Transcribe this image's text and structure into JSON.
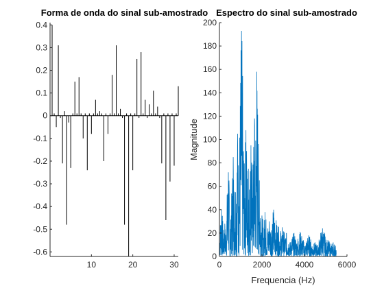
{
  "colors": {
    "stem": "#000000",
    "spectrum": "#0072BD",
    "axis": "#262626"
  },
  "chart_data": [
    {
      "type": "stem",
      "title": "Forma de onda do sinal sub-amostrado",
      "xlabel": "",
      "ylabel": "",
      "xlim": [
        0,
        31
      ],
      "ylim": [
        -0.62,
        0.41
      ],
      "x_ticks": [
        10,
        20,
        30
      ],
      "y_ticks": [
        -0.6,
        -0.5,
        -0.4,
        -0.3,
        -0.2,
        -0.1,
        0,
        0.1,
        0.2,
        0.3,
        0.4
      ],
      "y_tick_labels": [
        "-0.6",
        "-0.5",
        "-0.4",
        "-0.3",
        "-0.2",
        "-0.1",
        "0",
        "0.1",
        "0.2",
        "0.3",
        "0.4"
      ],
      "x_tick_labels": [
        "10",
        "20",
        "30"
      ],
      "x": [
        0.5,
        1,
        1.5,
        2,
        2.5,
        3,
        3.5,
        4,
        4.5,
        5,
        5.5,
        6,
        6.5,
        7,
        7.5,
        8,
        8.5,
        9,
        9.5,
        10,
        10.5,
        11,
        11.5,
        12,
        12.5,
        13,
        13.5,
        14,
        14.5,
        15,
        15.5,
        16,
        16.5,
        17,
        17.5,
        18,
        18.5,
        19,
        19.5,
        20,
        20.5,
        21,
        21.5,
        22,
        22.5,
        23,
        23.5,
        24,
        24.5,
        25,
        25.5,
        26,
        26.5,
        27,
        27.5,
        28,
        28.5,
        29,
        29.5,
        30,
        30.5,
        31
      ],
      "values": [
        0.4,
        0.01,
        -0.05,
        0.31,
        -0.01,
        -0.21,
        0.02,
        -0.48,
        -0.03,
        -0.23,
        0.01,
        0.15,
        0.01,
        0.17,
        0.01,
        -0.1,
        0.01,
        -0.24,
        0.01,
        -0.08,
        0.01,
        0.07,
        0.01,
        0.02,
        0.01,
        -0.2,
        0.01,
        -0.08,
        0.01,
        0.18,
        0.01,
        0.31,
        0.01,
        0.03,
        -0.01,
        -0.48,
        0.01,
        -0.62,
        0.01,
        -0.24,
        0.01,
        0.25,
        -0.01,
        0.28,
        0.01,
        0.07,
        -0.01,
        0.05,
        0.01,
        0.11,
        0.01,
        0.04,
        -0.01,
        -0.21,
        0.01,
        -0.46,
        0.01,
        -0.29,
        0.01,
        -0.22,
        0.01,
        0.13
      ]
    },
    {
      "type": "line",
      "title": "Espectro do sinal sub-amostrado",
      "xlabel": "Frequencia (Hz)",
      "ylabel": "Magnitude",
      "xlim": [
        0,
        6000
      ],
      "ylim": [
        0,
        200
      ],
      "x_ticks": [
        0,
        2000,
        4000,
        6000
      ],
      "x_tick_labels": [
        "0",
        "2000",
        "4000",
        "6000"
      ],
      "y_ticks": [
        0,
        20,
        40,
        60,
        80,
        100,
        120,
        140,
        160,
        180,
        200
      ],
      "y_tick_labels": [
        "0",
        "20",
        "40",
        "60",
        "80",
        "100",
        "120",
        "140",
        "160",
        "180",
        "200"
      ],
      "peaks": [
        {
          "x": 100,
          "y": 40
        },
        {
          "x": 250,
          "y": 28
        },
        {
          "x": 420,
          "y": 72
        },
        {
          "x": 560,
          "y": 35
        },
        {
          "x": 650,
          "y": 85
        },
        {
          "x": 760,
          "y": 55
        },
        {
          "x": 850,
          "y": 105
        },
        {
          "x": 960,
          "y": 60
        },
        {
          "x": 1040,
          "y": 193
        },
        {
          "x": 1130,
          "y": 90
        },
        {
          "x": 1250,
          "y": 108
        },
        {
          "x": 1360,
          "y": 75
        },
        {
          "x": 1480,
          "y": 95
        },
        {
          "x": 1560,
          "y": 50
        },
        {
          "x": 1650,
          "y": 118
        },
        {
          "x": 1760,
          "y": 158
        },
        {
          "x": 1880,
          "y": 65
        },
        {
          "x": 2000,
          "y": 35
        },
        {
          "x": 2150,
          "y": 38
        },
        {
          "x": 2350,
          "y": 30
        },
        {
          "x": 2550,
          "y": 40
        },
        {
          "x": 2750,
          "y": 26
        },
        {
          "x": 2950,
          "y": 25
        },
        {
          "x": 3150,
          "y": 20
        },
        {
          "x": 3500,
          "y": 20
        },
        {
          "x": 3800,
          "y": 21
        },
        {
          "x": 4200,
          "y": 18
        },
        {
          "x": 4500,
          "y": 12
        },
        {
          "x": 4850,
          "y": 24
        },
        {
          "x": 5100,
          "y": 14
        },
        {
          "x": 5350,
          "y": 12
        }
      ],
      "x_end": 5500
    }
  ]
}
